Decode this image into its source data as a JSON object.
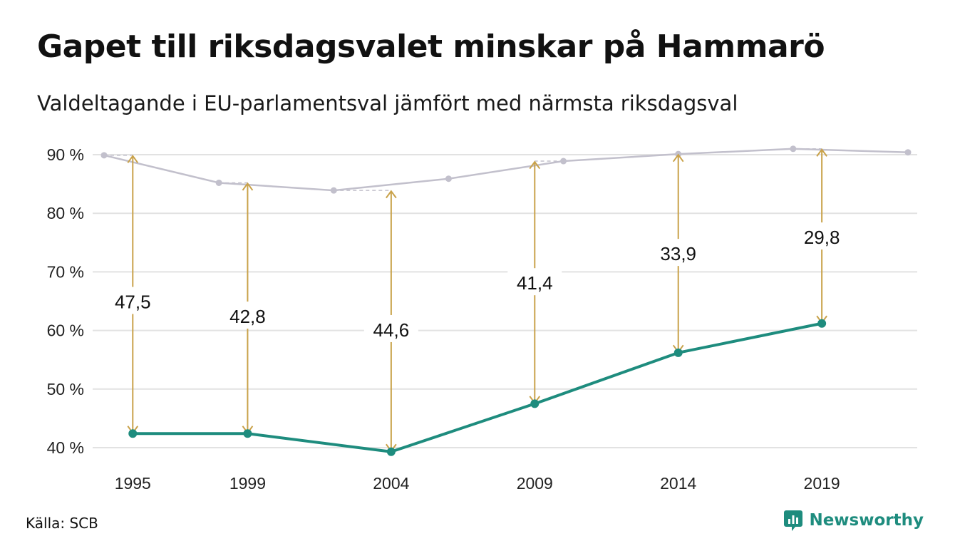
{
  "title": "Gapet till riksdagsvalet minskar på Hammarö",
  "subtitle": "Valdeltagande i EU-parlamentsval jämfört med närmsta riksdagsval",
  "source": "Källa: SCB",
  "brand": {
    "name": "Newsworthy",
    "icon": "chart-bubble-logo-icon",
    "color": "#1e8c7e"
  },
  "colors": {
    "eu_line": "#1e8c7e",
    "riksdag_line": "#c2c0cc",
    "gap_arrow": "#c9a24a",
    "grid": "#e2e2e2"
  },
  "chart_data": {
    "type": "line",
    "y_ticks": [
      40,
      50,
      60,
      70,
      80,
      90
    ],
    "y_tick_labels": [
      "40 %",
      "50 %",
      "60 %",
      "70 %",
      "80 %",
      "90 %"
    ],
    "ylim": [
      40,
      90
    ],
    "x_tick_labels": [
      "1995",
      "1999",
      "2004",
      "2009",
      "2014",
      "2019"
    ],
    "xlim": [
      1994,
      2022
    ],
    "grid": true,
    "series": [
      {
        "key": "riksdag",
        "x": [
          1994,
          1998,
          2002,
          2006,
          2010,
          2014,
          2018,
          2022
        ],
        "values": [
          89.9,
          85.2,
          83.9,
          85.9,
          88.9,
          90.1,
          91.0,
          90.4
        ]
      },
      {
        "key": "eu",
        "x": [
          1995,
          1999,
          2004,
          2009,
          2014,
          2019
        ],
        "values": [
          42.4,
          42.4,
          39.3,
          47.5,
          56.2,
          61.2
        ]
      }
    ],
    "gaps": [
      {
        "x": 1995,
        "from": 42.4,
        "to": 89.9,
        "label": "47,5",
        "label_y": 65
      },
      {
        "x": 1999,
        "from": 42.4,
        "to": 85.2,
        "label": "42,8",
        "label_y": 62.5
      },
      {
        "x": 2004,
        "from": 39.3,
        "to": 83.9,
        "label": "44,6",
        "label_y": 60.2
      },
      {
        "x": 2009,
        "from": 47.5,
        "to": 88.9,
        "label": "41,4",
        "label_y": 68.2
      },
      {
        "x": 2014,
        "from": 56.2,
        "to": 90.1,
        "label": "33,9",
        "label_y": 73.2
      },
      {
        "x": 2019,
        "from": 61.2,
        "to": 91.0,
        "label": "29,8",
        "label_y": 76
      }
    ]
  }
}
